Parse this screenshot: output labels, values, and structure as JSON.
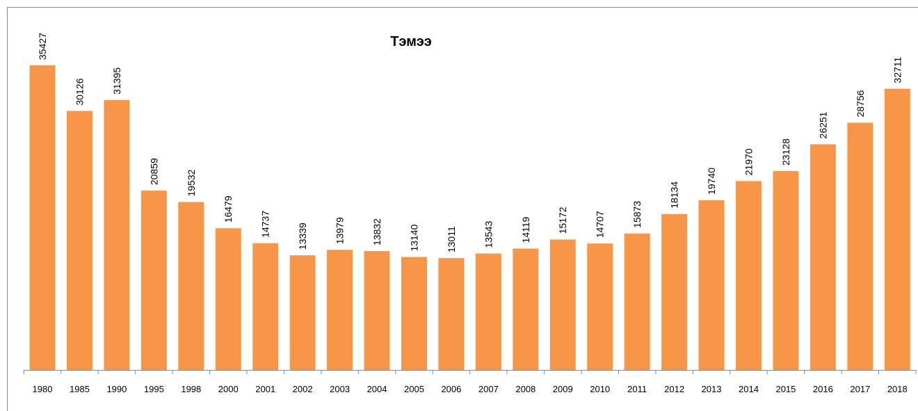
{
  "chart_data": {
    "type": "bar",
    "title": "Тэмээ",
    "categories": [
      "1980",
      "1985",
      "1990",
      "1995",
      "1998",
      "2000",
      "2001",
      "2002",
      "2003",
      "2004",
      "2005",
      "2006",
      "2007",
      "2008",
      "2009",
      "2010",
      "2011",
      "2012",
      "2013",
      "2014",
      "2015",
      "2016",
      "2017",
      "2018"
    ],
    "values": [
      35427,
      30126,
      31395,
      20859,
      19532,
      16479,
      14737,
      13339,
      13979,
      13832,
      13140,
      13011,
      13543,
      14119,
      15172,
      14707,
      15873,
      18134,
      19740,
      21970,
      23128,
      26251,
      28756,
      32711
    ],
    "color": "#f79646"
  }
}
